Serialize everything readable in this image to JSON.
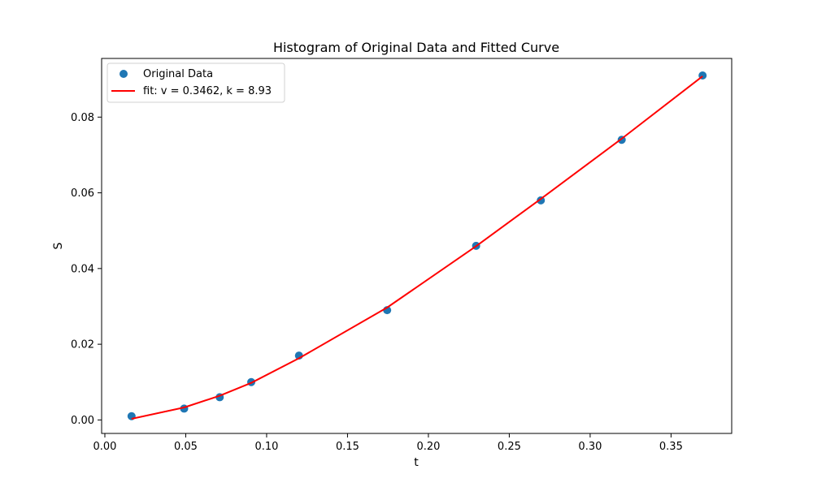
{
  "chart_data": {
    "type": "scatter",
    "title": "Histogram of Original Data and Fitted Curve",
    "xlabel": "t",
    "ylabel": "S",
    "xlim": [
      -0.002,
      0.3875
    ],
    "ylim": [
      -0.00356,
      0.0955
    ],
    "xticks": [
      0.0,
      0.05,
      0.1,
      0.15,
      0.2,
      0.25,
      0.3,
      0.35
    ],
    "xtick_labels": [
      "0.00",
      "0.05",
      "0.10",
      "0.15",
      "0.20",
      "0.25",
      "0.30",
      "0.35"
    ],
    "yticks": [
      0.0,
      0.02,
      0.04,
      0.06,
      0.08
    ],
    "ytick_labels": [
      "0.00",
      "0.02",
      "0.04",
      "0.06",
      "0.08"
    ],
    "grid": false,
    "legend": "upper-left",
    "series": [
      {
        "name": "Original Data",
        "kind": "scatter",
        "color": "#1f77b4",
        "x": [
          0.0165,
          0.049,
          0.071,
          0.0905,
          0.12,
          0.1745,
          0.2295,
          0.2695,
          0.3195,
          0.3695
        ],
        "y": [
          0.001,
          0.003,
          0.006,
          0.01,
          0.017,
          0.029,
          0.046,
          0.058,
          0.074,
          0.091
        ]
      },
      {
        "name": "fit: v = 0.3462, k = 8.93",
        "kind": "line",
        "color": "#ff0000",
        "x": [
          0.0165,
          0.049,
          0.071,
          0.0905,
          0.12,
          0.1745,
          0.2295,
          0.2695,
          0.3195,
          0.3695
        ],
        "y": [
          0.0003,
          0.0033,
          0.0064,
          0.0098,
          0.0163,
          0.0297,
          0.0459,
          0.0584,
          0.0743,
          0.0908
        ]
      }
    ]
  }
}
